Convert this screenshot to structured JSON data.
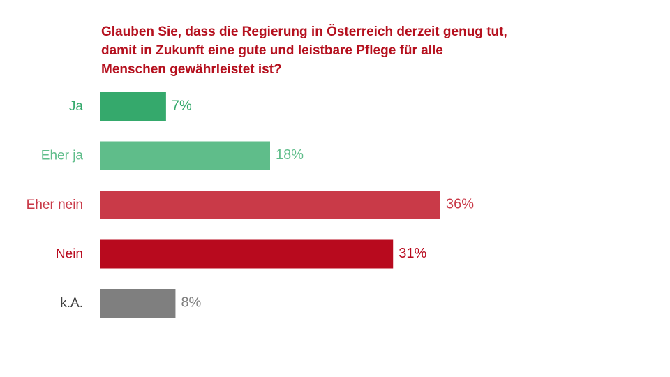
{
  "chart_data": {
    "type": "bar",
    "orientation": "horizontal",
    "title_lines": [
      "Glauben Sie, dass die Regierung in Österreich derzeit genug tut,",
      "damit in Zukunft eine gute und leistbare Pflege für alle",
      "Menschen gewährleistet ist?"
    ],
    "categories": [
      "Ja",
      "Eher ja",
      "Eher nein",
      "Nein",
      "k.A."
    ],
    "values": [
      7,
      18,
      36,
      31,
      8
    ],
    "value_labels": [
      "7%",
      "18%",
      "36%",
      "31%",
      "8%"
    ],
    "unit": "%",
    "bar_colors": [
      "#35a96c",
      "#5fbd8a",
      "#c93a48",
      "#b80a1e",
      "#7f7f7f"
    ],
    "label_colors": [
      "#35a96c",
      "#5fbd8a",
      "#c93a48",
      "#b80a1e",
      "#404040"
    ],
    "value_label_colors": [
      "#35a96c",
      "#5fbd8a",
      "#c93a48",
      "#b80a1e",
      "#7f7f7f"
    ],
    "title_color": "#b5101e",
    "grid": false,
    "legend": "none",
    "xlim": [
      0,
      36
    ]
  }
}
